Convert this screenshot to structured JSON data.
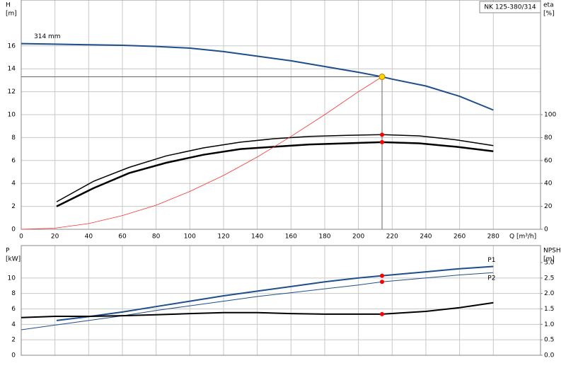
{
  "chart_data": [
    {
      "type": "line",
      "title": "NK 125-380/314",
      "ylabel": [
        "H",
        "[m]"
      ],
      "y2label": [
        "eta",
        "[%]"
      ],
      "xlabel": "Q [m³/h]",
      "xlim": [
        0,
        308
      ],
      "xticks": [
        0,
        20,
        40,
        60,
        80,
        100,
        120,
        140,
        160,
        180,
        200,
        220,
        240,
        260,
        280
      ],
      "ylim": [
        0,
        20
      ],
      "yticks": [
        0,
        2,
        4,
        6,
        8,
        10,
        12,
        14,
        16
      ],
      "y2lim": [
        0,
        200
      ],
      "y2ticks": [
        0,
        20,
        40,
        60,
        80,
        100
      ],
      "grid": true,
      "x_tick_labels": true,
      "series": [
        {
          "name": "314 mm",
          "label_at": "start",
          "color": "#1f4e8c",
          "line_width": 2,
          "axis": "y",
          "x": [
            0,
            20,
            40,
            60,
            80,
            100,
            120,
            140,
            160,
            180,
            200,
            214,
            220,
            240,
            260,
            280
          ],
          "values": [
            16.2,
            16.15,
            16.1,
            16.05,
            15.95,
            15.8,
            15.5,
            15.1,
            14.7,
            14.2,
            13.7,
            13.3,
            13.1,
            12.5,
            11.6,
            10.4
          ]
        },
        {
          "color": "#000000",
          "line_width": 1.5,
          "axis": "y2",
          "x": [
            21,
            43,
            64,
            86,
            108,
            130,
            150,
            171,
            193,
            214,
            236,
            258,
            280
          ],
          "values": [
            24,
            42,
            54,
            64,
            71,
            76,
            79,
            81,
            82,
            82.5,
            81.5,
            78,
            73
          ]
        },
        {
          "color": "#000000",
          "line_width": 2.5,
          "axis": "y2",
          "x": [
            21,
            43,
            64,
            86,
            108,
            130,
            150,
            171,
            193,
            214,
            236,
            258,
            280
          ],
          "values": [
            20,
            36,
            49,
            58,
            65,
            70,
            72,
            74,
            75,
            76,
            75,
            72,
            68
          ]
        },
        {
          "color": "#ff3030",
          "line_width": 0.8,
          "axis": "y",
          "x": [
            0,
            20,
            40,
            60,
            80,
            100,
            120,
            140,
            160,
            180,
            200,
            214
          ],
          "values": [
            0,
            0.1,
            0.5,
            1.2,
            2.1,
            3.3,
            4.7,
            6.3,
            8.1,
            10.0,
            12.0,
            13.3
          ]
        }
      ],
      "points": [
        {
          "x": 214,
          "y": 13.3,
          "axis": "y",
          "color": "#ffd700",
          "crosshair": true
        },
        {
          "x": 214,
          "y": 82.5,
          "axis": "y2",
          "color": "#ff0000"
        },
        {
          "x": 214,
          "y": 76,
          "axis": "y2",
          "color": "#ff0000"
        }
      ]
    },
    {
      "type": "line",
      "ylabel": [
        "P",
        "[kW]"
      ],
      "y2label": [
        "NPSH",
        "[m]"
      ],
      "xlim": [
        0,
        308
      ],
      "xticks": [
        0,
        20,
        40,
        60,
        80,
        100,
        120,
        140,
        160,
        180,
        200,
        220,
        240,
        260,
        280
      ],
      "ylim": [
        0,
        14.2
      ],
      "yticks": [
        0,
        2,
        4,
        6,
        8,
        10
      ],
      "y2lim": [
        0,
        3.55
      ],
      "y2ticks": [
        {
          "value": 0,
          "label": "0.0"
        },
        0.5,
        {
          "value": 1,
          "label": "1.0"
        },
        1.5,
        {
          "value": 2,
          "label": "2.0"
        },
        2.5,
        {
          "value": 3,
          "label": "3.0"
        }
      ],
      "grid": true,
      "x_tick_labels": false,
      "series": [
        {
          "name": "P1",
          "label_at": "end",
          "color": "#1f4e8c",
          "line_width": 2,
          "axis": "y",
          "x": [
            21,
            40,
            60,
            80,
            100,
            120,
            140,
            160,
            180,
            200,
            214,
            240,
            260,
            280
          ],
          "values": [
            4.5,
            5.0,
            5.6,
            6.3,
            7.0,
            7.7,
            8.3,
            8.9,
            9.5,
            10.0,
            10.3,
            10.8,
            11.2,
            11.5
          ]
        },
        {
          "name": "P2",
          "label_at": "end",
          "color": "#1f4e8c",
          "line_width": 1,
          "axis": "y",
          "x": [
            0,
            20,
            40,
            60,
            80,
            100,
            120,
            140,
            160,
            180,
            200,
            214,
            240,
            260,
            280
          ],
          "values": [
            3.3,
            3.9,
            4.5,
            5.1,
            5.8,
            6.4,
            7.0,
            7.6,
            8.1,
            8.6,
            9.1,
            9.5,
            10.0,
            10.4,
            10.7
          ]
        },
        {
          "color": "#000000",
          "line_width": 2,
          "axis": "y2",
          "x": [
            0,
            20,
            40,
            60,
            80,
            100,
            120,
            140,
            160,
            180,
            200,
            214,
            240,
            260,
            280
          ],
          "values": [
            1.22,
            1.26,
            1.26,
            1.28,
            1.31,
            1.35,
            1.38,
            1.38,
            1.35,
            1.33,
            1.33,
            1.33,
            1.42,
            1.54,
            1.7
          ]
        }
      ],
      "points": [
        {
          "x": 214,
          "y": 10.3,
          "axis": "y",
          "color": "#ff0000"
        },
        {
          "x": 214,
          "y": 9.5,
          "axis": "y",
          "color": "#ff0000"
        },
        {
          "x": 214,
          "y": 1.33,
          "axis": "y2",
          "color": "#ff0000"
        }
      ]
    }
  ]
}
